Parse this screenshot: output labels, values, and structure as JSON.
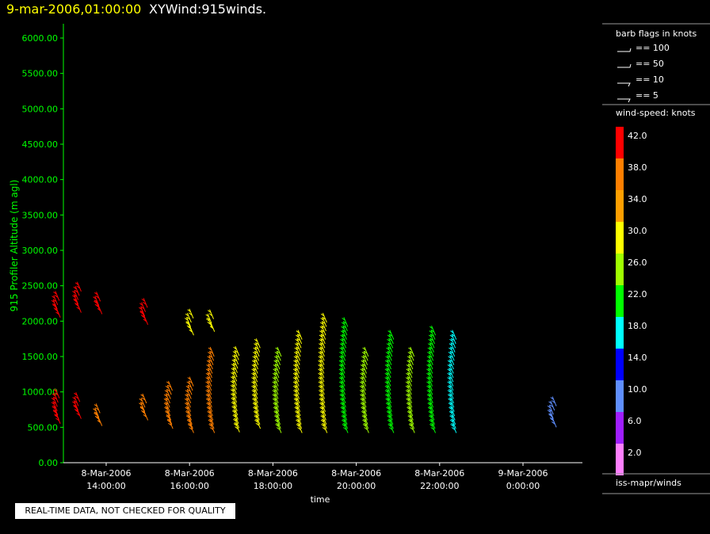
{
  "header": {
    "date_title": "9-mar-2006,01:00:00",
    "plot_title": "XYWind:915winds."
  },
  "qc_notice": "REAL-TIME DATA, NOT CHECKED FOR QUALITY",
  "legend": {
    "barb_title": "barb flags in knots",
    "barb_items": [
      "== 100",
      "== 50",
      "== 10",
      "== 5"
    ],
    "speed_title": "wind-speed: knots",
    "speed_bins": [
      {
        "label": "42.0",
        "color": "#ff0000"
      },
      {
        "label": "38.0",
        "color": "#ff7f00"
      },
      {
        "label": "34.0",
        "color": "#ff9f00"
      },
      {
        "label": "30.0",
        "color": "#ffff00"
      },
      {
        "label": "26.0",
        "color": "#9fff00"
      },
      {
        "label": "22.0",
        "color": "#00ff00"
      },
      {
        "label": "18.0",
        "color": "#00ffff"
      },
      {
        "label": "14.0",
        "color": "#0000ff"
      },
      {
        "label": "10.0",
        "color": "#5f8fff"
      },
      {
        "label": "6.0",
        "color": "#9f1fff"
      },
      {
        "label": "2.0",
        "color": "#ff7fff"
      }
    ],
    "source": "iss-mapr/winds"
  },
  "chart_data": {
    "type": "scatter",
    "ylabel": "915 Profiler Altitude (m agl)",
    "xlabel": "time",
    "ylim": [
      0,
      6200
    ],
    "yticks": [
      "0.00",
      "500.00",
      "1000.00",
      "1500.00",
      "2000.00",
      "2500.00",
      "3000.00",
      "3500.00",
      "4000.00",
      "4500.00",
      "5000.00",
      "5500.00",
      "6000.00"
    ],
    "xticks": [
      {
        "date": "8-Mar-2006",
        "time": "14:00:00",
        "hour": 14
      },
      {
        "date": "8-Mar-2006",
        "time": "16:00:00",
        "hour": 16
      },
      {
        "date": "8-Mar-2006",
        "time": "18:00:00",
        "hour": 18
      },
      {
        "date": "8-Mar-2006",
        "time": "20:00:00",
        "hour": 20
      },
      {
        "date": "8-Mar-2006",
        "time": "22:00:00",
        "hour": 22
      },
      {
        "date": "9-Mar-2006",
        "time": "0:00:00",
        "hour": 24
      }
    ],
    "colors": {
      "axis": "#00ff00",
      "tick_label": "#00ff00",
      "ylabel": "#00ff00"
    },
    "profiles": [
      {
        "hour": 12.9,
        "hmin": 550,
        "hmax": 950,
        "speed": 42
      },
      {
        "hour": 12.9,
        "hmin": 2050,
        "hmax": 2320,
        "speed": 42
      },
      {
        "hour": 13.4,
        "hmin": 620,
        "hmax": 900,
        "speed": 40
      },
      {
        "hour": 13.4,
        "hmin": 2120,
        "hmax": 2420,
        "speed": 42
      },
      {
        "hour": 13.9,
        "hmin": 520,
        "hmax": 750,
        "speed": 36
      },
      {
        "hour": 13.9,
        "hmin": 2100,
        "hmax": 2320,
        "speed": 42
      },
      {
        "hour": 15.0,
        "hmin": 600,
        "hmax": 880,
        "speed": 38
      },
      {
        "hour": 15.0,
        "hmin": 1950,
        "hmax": 2200,
        "speed": 42
      },
      {
        "hour": 15.6,
        "hmin": 480,
        "hmax": 1050,
        "speed": 36
      },
      {
        "hour": 16.1,
        "hmin": 420,
        "hmax": 1100,
        "speed": 38
      },
      {
        "hour": 16.1,
        "hmin": 1800,
        "hmax": 2050,
        "speed": 30
      },
      {
        "hour": 16.6,
        "hmin": 420,
        "hmax": 1550,
        "speed": 36
      },
      {
        "hour": 16.6,
        "hmin": 1850,
        "hmax": 2050,
        "speed": 30
      },
      {
        "hour": 17.2,
        "hmin": 430,
        "hmax": 1550,
        "speed": 30
      },
      {
        "hour": 17.7,
        "hmin": 480,
        "hmax": 1650,
        "speed": 28
      },
      {
        "hour": 18.2,
        "hmin": 420,
        "hmax": 1500,
        "speed": 24
      },
      {
        "hour": 18.7,
        "hmin": 420,
        "hmax": 1750,
        "speed": 28
      },
      {
        "hour": 19.3,
        "hmin": 420,
        "hmax": 2030,
        "speed": 30
      },
      {
        "hour": 19.8,
        "hmin": 420,
        "hmax": 1950,
        "speed": 20
      },
      {
        "hour": 20.3,
        "hmin": 420,
        "hmax": 1550,
        "speed": 26
      },
      {
        "hour": 20.9,
        "hmin": 420,
        "hmax": 1750,
        "speed": 20
      },
      {
        "hour": 21.4,
        "hmin": 420,
        "hmax": 1550,
        "speed": 24
      },
      {
        "hour": 21.9,
        "hmin": 420,
        "hmax": 1800,
        "speed": 22
      },
      {
        "hour": 22.4,
        "hmin": 420,
        "hmax": 1750,
        "speed": 16
      },
      {
        "hour": 24.8,
        "hmin": 500,
        "hmax": 800,
        "speed": 8
      }
    ]
  }
}
